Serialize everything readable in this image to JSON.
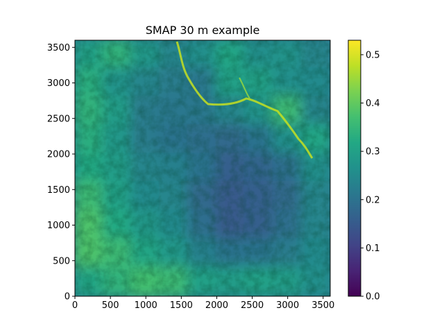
{
  "chart_data": {
    "type": "heatmap",
    "title": "SMAP 30 m example",
    "xlabel": "",
    "ylabel": "",
    "xlim": [
      0,
      3600
    ],
    "ylim": [
      0,
      3600
    ],
    "xticks": [
      0,
      500,
      1000,
      1500,
      2000,
      2500,
      3000,
      3500
    ],
    "yticks": [
      0,
      500,
      1000,
      1500,
      2000,
      2500,
      3000,
      3500
    ],
    "colorbar": {
      "colormap": "viridis",
      "vmin": 0.0,
      "vmax": 0.53,
      "ticks": [
        0.0,
        0.1,
        0.2,
        0.3,
        0.4,
        0.5
      ],
      "tick_labels": [
        "0.0",
        "0.1",
        "0.2",
        "0.3",
        "0.4",
        "0.5"
      ]
    },
    "grid_values": {
      "description_of_values": "approximate value per 400x400 block; rows from top (y≈3600) to bottom (y≈0), columns left to right",
      "rows": [
        [
          0.3,
          0.34,
          0.28,
          0.24,
          0.26,
          0.31,
          0.26,
          0.27,
          0.24
        ],
        [
          0.33,
          0.27,
          0.24,
          0.22,
          0.21,
          0.3,
          0.3,
          0.26,
          0.25
        ],
        [
          0.34,
          0.29,
          0.22,
          0.21,
          0.21,
          0.24,
          0.27,
          0.36,
          0.24
        ],
        [
          0.33,
          0.28,
          0.22,
          0.2,
          0.19,
          0.18,
          0.2,
          0.26,
          0.31
        ],
        [
          0.32,
          0.29,
          0.24,
          0.23,
          0.2,
          0.16,
          0.17,
          0.19,
          0.26
        ],
        [
          0.36,
          0.3,
          0.25,
          0.24,
          0.18,
          0.15,
          0.16,
          0.18,
          0.24
        ],
        [
          0.38,
          0.32,
          0.28,
          0.25,
          0.19,
          0.15,
          0.16,
          0.19,
          0.24
        ],
        [
          0.38,
          0.36,
          0.31,
          0.28,
          0.23,
          0.2,
          0.2,
          0.22,
          0.25
        ],
        [
          0.31,
          0.34,
          0.37,
          0.36,
          0.3,
          0.29,
          0.3,
          0.29,
          0.26
        ]
      ]
    },
    "colors": {
      "frame": "#000000",
      "background": "#ffffff"
    }
  }
}
